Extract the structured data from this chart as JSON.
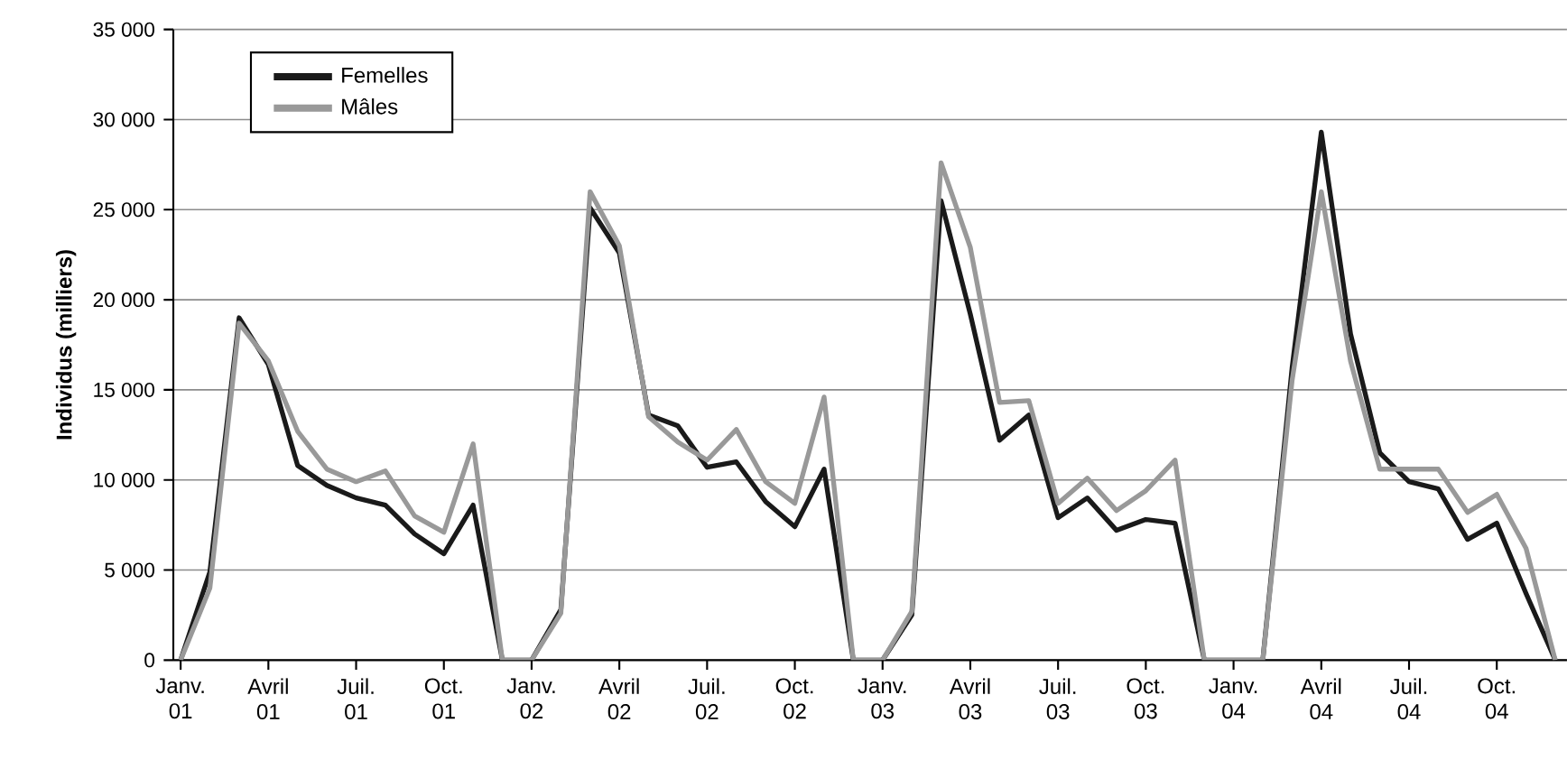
{
  "chart_data": {
    "type": "line",
    "ylabel": "Individus (milliers)",
    "categories": [
      "Janv. 01",
      null,
      null,
      "Avril 01",
      null,
      null,
      "Juil. 01",
      null,
      null,
      "Oct. 01",
      null,
      null,
      "Janv. 02",
      null,
      null,
      "Avril 02",
      null,
      null,
      "Juil. 02",
      null,
      null,
      "Oct. 02",
      null,
      null,
      "Janv. 03",
      null,
      null,
      "Avril 03",
      null,
      null,
      "Juil. 03",
      null,
      null,
      "Oct. 03",
      null,
      null,
      "Janv. 04",
      null,
      null,
      "Avril 04",
      null,
      null,
      "Juil. 04",
      null,
      null,
      "Oct. 04",
      null,
      null
    ],
    "series": [
      {
        "name": "Femelles",
        "color": "#1a1a1a",
        "values": [
          0,
          4900,
          19000,
          16400,
          10800,
          9700,
          9000,
          8600,
          7000,
          5900,
          8600,
          0,
          0,
          2800,
          25100,
          22600,
          13600,
          13000,
          10700,
          11000,
          8800,
          7400,
          10600,
          0,
          0,
          2500,
          25500,
          19200,
          12200,
          13600,
          7900,
          9000,
          7200,
          7800,
          7600,
          0,
          0,
          0,
          16200,
          29300,
          18100,
          11500,
          9900,
          9500,
          6700,
          7600,
          3700,
          0
        ]
      },
      {
        "name": "Mâles",
        "color": "#999999",
        "values": [
          0,
          4000,
          18700,
          16600,
          12700,
          10600,
          9900,
          10500,
          8000,
          7100,
          12000,
          0,
          0,
          2600,
          26000,
          23000,
          13500,
          12100,
          11100,
          12800,
          9900,
          8700,
          14600,
          0,
          0,
          2700,
          27600,
          22900,
          14300,
          14400,
          8700,
          10100,
          8300,
          9400,
          11100,
          0,
          0,
          0,
          15500,
          26000,
          16600,
          10600,
          10600,
          10600,
          8200,
          9200,
          6200,
          0
        ]
      }
    ],
    "ylim": [
      0,
      35000
    ],
    "yticks": [
      0,
      {
        "value": 5000,
        "label": "5 000"
      },
      {
        "value": 10000,
        "label": "10 000"
      },
      {
        "value": 15000,
        "label": "15 000"
      },
      {
        "value": 20000,
        "label": "20 000"
      },
      {
        "value": 25000,
        "label": "25 000"
      },
      {
        "value": 30000,
        "label": "30 000"
      },
      {
        "value": 35000,
        "label": "35 000"
      }
    ],
    "grid": "y",
    "legend": "top left",
    "marker": "none",
    "line_style": "solid"
  }
}
